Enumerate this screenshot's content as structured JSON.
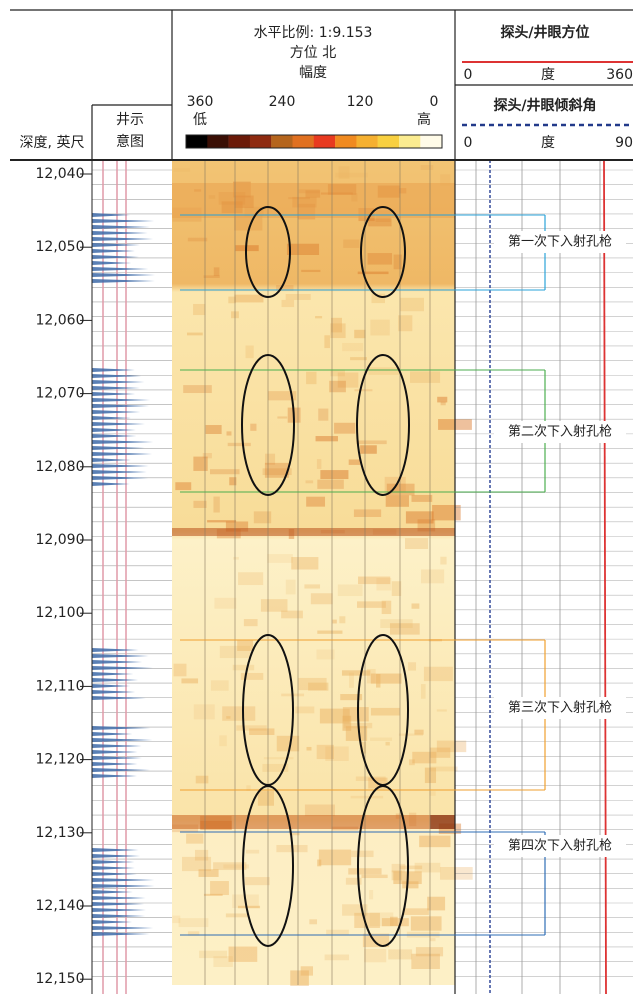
{
  "header": {
    "depth_label": "深度, 英尺",
    "schematic_label": [
      "井示",
      "意图"
    ],
    "image_title": "水平比例: 1:9.153",
    "azimuth": "方位 北",
    "amplitude": "幅度",
    "scale": [
      "360",
      "240",
      "120",
      "0"
    ],
    "low": "低",
    "high": "高",
    "track1": {
      "title": "探头/井眼方位",
      "min": "0",
      "unit": "度",
      "max": "360"
    },
    "track2": {
      "title": "探头/井眼倾斜角",
      "min": "0",
      "unit": "度",
      "max": "90"
    }
  },
  "depths": [
    "12,040",
    "12,050",
    "12,060",
    "12,070",
    "12,080",
    "12,090",
    "12,100",
    "12,110",
    "12,120",
    "12,130",
    "12,140",
    "12,150"
  ],
  "annotations": [
    {
      "label": "第一次下入射孔枪",
      "color": "#2aa3d9"
    },
    {
      "label": "第二次下入射孔枪",
      "color": "#4caf50"
    },
    {
      "label": "第三次下入射孔枪",
      "color": "#f0a030"
    },
    {
      "label": "第四次下入射孔枪",
      "color": "#2f6db5"
    }
  ]
}
